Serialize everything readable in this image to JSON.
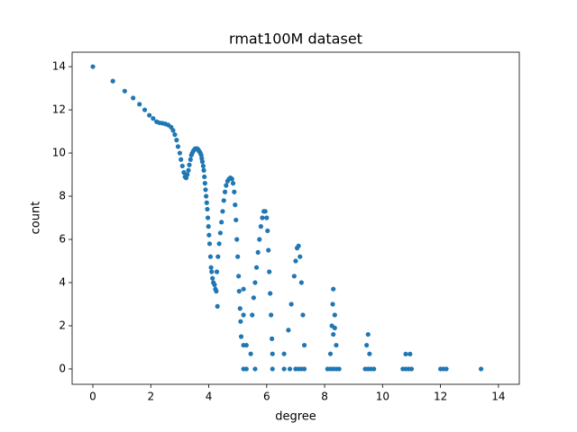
{
  "chart_data": {
    "type": "scatter",
    "title": "rmat100M dataset",
    "x_label": "degree",
    "y_label": "count",
    "color": "#1f77b4",
    "x": [
      0,
      0.69,
      1.1,
      1.39,
      1.61,
      1.79,
      1.95,
      2.08,
      2.2,
      2.3,
      2.4,
      2.5,
      2.6,
      2.7,
      2.77,
      2.83,
      2.89,
      2.94,
      3.0,
      3.04,
      3.09,
      3.14,
      3.18,
      3.22,
      3.26,
      3.3,
      3.33,
      3.37,
      3.4,
      3.43,
      3.47,
      3.5,
      3.53,
      3.56,
      3.58,
      3.61,
      3.64,
      3.66,
      3.69,
      3.71,
      3.74,
      3.76,
      3.78,
      3.81,
      3.83,
      3.85,
      3.87,
      3.89,
      3.91,
      3.93,
      3.95,
      3.97,
      3.99,
      4.01,
      4.03,
      4.06,
      4.08,
      4.1,
      4.13,
      4.16,
      4.2,
      4.23,
      4.26,
      4.3,
      4.28,
      4.32,
      4.36,
      4.4,
      4.44,
      4.48,
      4.52,
      4.56,
      4.6,
      4.65,
      4.7,
      4.75,
      4.8,
      4.84,
      4.88,
      4.91,
      4.94,
      4.97,
      5.0,
      5.03,
      5.05,
      5.08,
      5.1,
      5.12,
      5.2,
      5.2,
      5.2,
      5.2,
      5.3,
      5.3,
      5.45,
      5.5,
      5.55,
      5.6,
      5.65,
      5.7,
      5.75,
      5.8,
      5.85,
      5.9,
      5.95,
      6.0,
      6.03,
      6.06,
      6.09,
      6.12,
      6.15,
      6.18,
      6.2,
      5.6,
      6.2,
      6.6,
      6.75,
      6.85,
      6.95,
      7.0,
      7.05,
      7.1,
      7.15,
      7.2,
      7.25,
      7.3,
      6.6,
      6.8,
      7.0,
      7.3,
      7.1,
      7.2,
      8.2,
      8.25,
      8.28,
      8.3,
      8.35,
      8.4,
      8.3,
      8.35,
      8.1,
      8.2,
      8.3,
      8.4,
      8.5,
      9.45,
      9.5,
      9.55,
      9.4,
      9.5,
      9.6,
      9.7,
      10.8,
      10.95,
      10.7,
      10.8,
      10.9,
      11.0,
      12.0,
      12.1,
      12.2,
      13.4
    ],
    "values": [
      14,
      13.33,
      12.87,
      12.55,
      12.26,
      12.0,
      11.75,
      11.6,
      11.45,
      11.4,
      11.38,
      11.35,
      11.3,
      11.2,
      11.05,
      10.85,
      10.6,
      10.3,
      10.0,
      9.7,
      9.4,
      9.1,
      8.9,
      8.85,
      9.0,
      9.2,
      9.45,
      9.7,
      9.9,
      10.0,
      10.1,
      10.15,
      10.2,
      10.2,
      10.2,
      10.2,
      10.15,
      10.1,
      10.05,
      10.0,
      9.9,
      9.75,
      9.6,
      9.4,
      9.2,
      8.9,
      8.6,
      8.3,
      8.0,
      7.7,
      7.4,
      7.0,
      6.6,
      6.2,
      5.8,
      5.2,
      4.7,
      4.5,
      4.2,
      4.0,
      3.9,
      3.7,
      3.6,
      2.9,
      4.5,
      5.2,
      5.8,
      6.3,
      6.8,
      7.3,
      7.8,
      8.2,
      8.5,
      8.7,
      8.8,
      8.85,
      8.8,
      8.6,
      8.2,
      7.6,
      6.9,
      6.0,
      5.2,
      4.3,
      3.6,
      2.8,
      2.2,
      1.5,
      0,
      1.1,
      2.5,
      3.7,
      0,
      1.1,
      0.7,
      2.5,
      3.3,
      4.0,
      4.7,
      5.4,
      6.0,
      6.6,
      7.0,
      7.3,
      7.3,
      7.0,
      6.4,
      5.5,
      4.5,
      3.5,
      2.5,
      1.4,
      0.7,
      0,
      0,
      0.7,
      1.8,
      3.0,
      4.3,
      5.0,
      5.6,
      5.7,
      5.2,
      4.0,
      2.5,
      1.1,
      0,
      0,
      0,
      0,
      0,
      0,
      0.7,
      2.0,
      3.0,
      3.7,
      2.5,
      1.1,
      1.6,
      1.9,
      0,
      0,
      0,
      0,
      0,
      1.1,
      1.6,
      0.7,
      0,
      0,
      0,
      0,
      0.69,
      0.69,
      0,
      0,
      0,
      0,
      0,
      0,
      0,
      0
    ],
    "xlim": [
      -0.716,
      14.72
    ],
    "ylim": [
      -0.71,
      14.67
    ],
    "xticks": [
      0,
      2,
      4,
      6,
      8,
      10,
      12,
      14
    ],
    "yticks": [
      0,
      2,
      4,
      6,
      8,
      10,
      12,
      14
    ]
  }
}
